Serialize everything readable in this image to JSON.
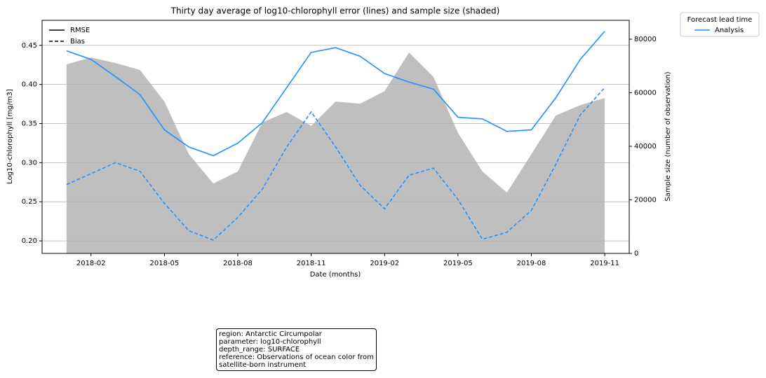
{
  "chart_data": {
    "type": "line",
    "title": "Thirty day average of log10-chlorophyll error (lines) and sample size (shaded)",
    "xlabel": "Date (months)",
    "ylabel": "Log10-chlorophyll [mg/m3]",
    "y2label": "Sample size (number of observation)",
    "x": [
      "2018-01",
      "2018-02",
      "2018-03",
      "2018-04",
      "2018-05",
      "2018-06",
      "2018-07",
      "2018-08",
      "2018-09",
      "2018-10",
      "2018-11",
      "2018-12",
      "2019-01",
      "2019-02",
      "2019-03",
      "2019-04",
      "2019-05",
      "2019-06",
      "2019-07",
      "2019-08",
      "2019-09",
      "2019-10",
      "2019-11"
    ],
    "xlim": [
      "2017-12",
      "2019-12"
    ],
    "xticks": [
      "2018-02",
      "2018-05",
      "2018-08",
      "2018-11",
      "2019-02",
      "2019-05",
      "2019-08",
      "2019-11"
    ],
    "ylim": [
      0.184,
      0.482
    ],
    "yticks": [
      {
        "value": 0.2,
        "label": "0.20"
      },
      {
        "value": 0.25,
        "label": "0.25"
      },
      {
        "value": 0.3,
        "label": "0.30"
      },
      {
        "value": 0.35,
        "label": "0.35"
      },
      {
        "value": 0.4,
        "label": "0.40"
      },
      {
        "value": 0.45,
        "label": "0.45"
      }
    ],
    "y2lim": [
      0,
      87060
    ],
    "y2ticks": [
      0,
      20000,
      40000,
      60000,
      80000
    ],
    "grid": true,
    "series": [
      {
        "name": "RMSE",
        "linestyle": "solid",
        "color": "#1e90ff",
        "values": [
          0.443,
          0.432,
          0.41,
          0.387,
          0.342,
          0.32,
          0.309,
          0.325,
          0.351,
          0.396,
          0.441,
          0.447,
          0.436,
          0.414,
          0.403,
          0.394,
          0.358,
          0.356,
          0.34,
          0.342,
          0.383,
          0.432,
          0.468
        ]
      },
      {
        "name": "Bias",
        "linestyle": "dashed",
        "color": "#1e90ff",
        "values": [
          0.272,
          0.286,
          0.3,
          0.289,
          0.248,
          0.213,
          0.201,
          0.23,
          0.266,
          0.32,
          0.365,
          0.32,
          0.271,
          0.241,
          0.284,
          0.293,
          0.253,
          0.202,
          0.211,
          0.239,
          0.298,
          0.361,
          0.396
        ]
      },
      {
        "axis": "y2",
        "kind": "area",
        "color": "#bfbfbf",
        "values": [
          70600,
          73200,
          71100,
          68500,
          56700,
          37100,
          26100,
          30600,
          48900,
          52800,
          47600,
          56700,
          55900,
          60600,
          75000,
          65900,
          45000,
          30600,
          22700,
          37100,
          51500,
          55400,
          58000
        ]
      }
    ],
    "legend": "upper left",
    "legend2": {
      "title": "Forecast lead time",
      "entries": [
        {
          "name": "Analysis",
          "color": "#1e90ff"
        }
      ]
    },
    "info": [
      "region: Antarctic Circumpolar",
      "parameter: log10-chlorophyll",
      "depth_range: SURFACE",
      "reference: Observations of ocean color from",
      "satellite-born instrument"
    ]
  }
}
